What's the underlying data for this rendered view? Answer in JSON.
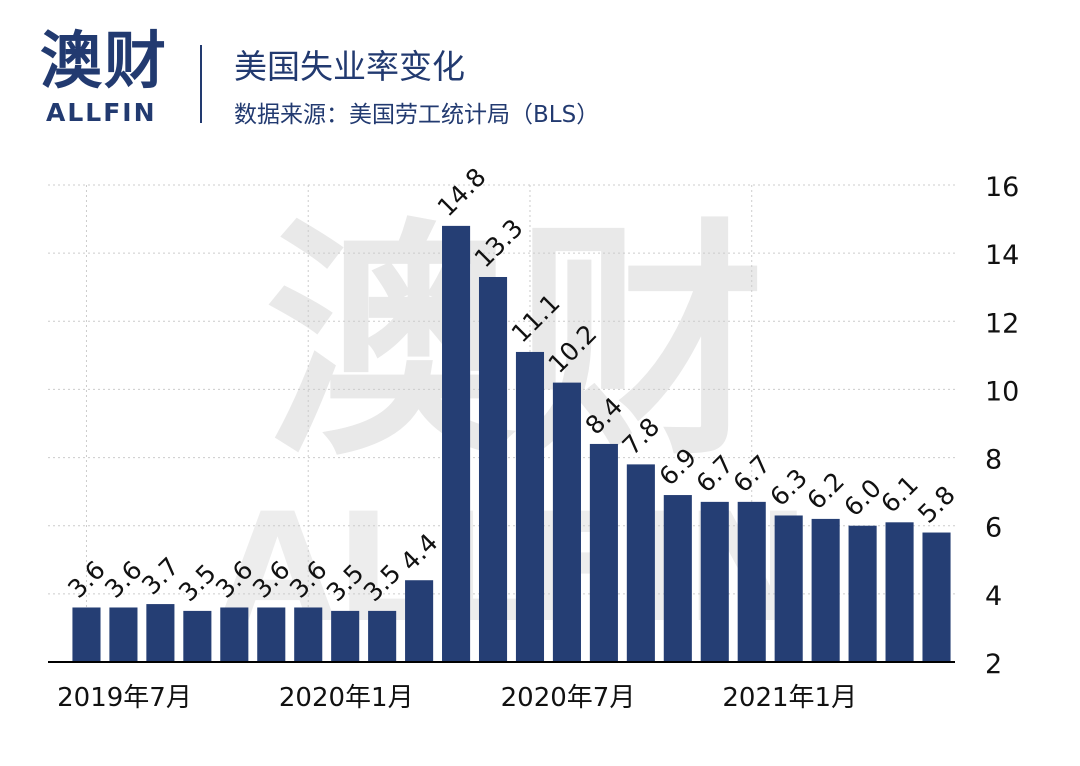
{
  "header": {
    "logo_cn": "澳财",
    "logo_en": "ALLFIN",
    "title": "美国失业率变化",
    "source": "数据来源：美国劳工统计局（BLS）"
  },
  "watermark": {
    "cn": "澳财",
    "en": "ALLFIN"
  },
  "colors": {
    "bar": "#253e74",
    "brand": "#223a70",
    "grid": "#cccccc",
    "text": "#111111"
  },
  "chart_data": {
    "type": "bar",
    "title": "美国失业率变化",
    "categories": [
      "2019-07",
      "2019-08",
      "2019-09",
      "2019-10",
      "2019-11",
      "2019-12",
      "2020-01",
      "2020-02",
      "2020-03",
      "2020-04",
      "2020-05",
      "2020-06",
      "2020-07",
      "2020-08",
      "2020-09",
      "2020-10",
      "2020-11",
      "2020-12",
      "2021-01",
      "2021-02",
      "2021-03",
      "2021-04",
      "2021-05",
      "2021-06"
    ],
    "values": [
      3.6,
      3.6,
      3.7,
      3.5,
      3.6,
      3.6,
      3.6,
      3.5,
      3.5,
      4.4,
      14.8,
      13.3,
      11.1,
      10.2,
      8.4,
      7.8,
      6.9,
      6.7,
      6.7,
      6.3,
      6.2,
      6.0,
      6.1,
      5.8
    ],
    "value_labels": [
      "3.6",
      "3.6",
      "3.7",
      "3.5",
      "3.6",
      "3.6",
      "3.6",
      "3.5",
      "3.5",
      "4.4",
      "14.8",
      "13.3",
      "11.1",
      "10.2",
      "8.4",
      "7.8",
      "6.9",
      "6.7",
      "6.7",
      "6.3",
      "6.2",
      "6.0",
      "6.1",
      "5.8"
    ],
    "x_tick_labels": [
      {
        "index": 0,
        "label": "2019年7月"
      },
      {
        "index": 6,
        "label": "2020年1月"
      },
      {
        "index": 12,
        "label": "2020年7月"
      },
      {
        "index": 18,
        "label": "2021年1月"
      }
    ],
    "y_ticks": [
      "2",
      "4",
      "6",
      "8",
      "10",
      "12",
      "14",
      "16"
    ],
    "ylim": [
      2,
      16
    ],
    "y_axis_side": "right",
    "grid": true,
    "legend": "none",
    "xlabel": "",
    "ylabel": ""
  }
}
